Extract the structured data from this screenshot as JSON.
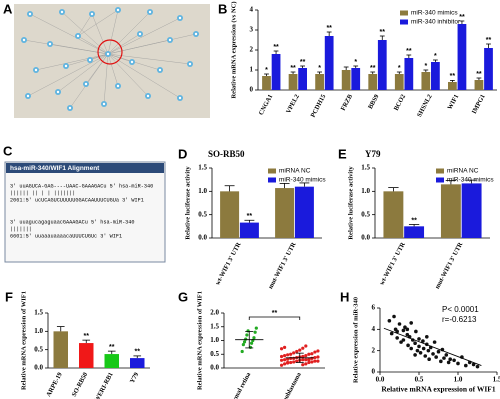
{
  "panel_a": {
    "label": "A"
  },
  "panel_c": {
    "label": "C",
    "title": "hsa-miR-340/WIF1 Alignment",
    "lines": [
      "3' uuAGUCA-GAG----UAAC-GAAAGACu 5' hsa-miR-340",
      "    |||||| ||     |   | |||||||",
      "2061:5' ucUCAGUCUUUUUGGACAAUUUCUGUa 3' WIF1",
      "3' uuagucagaguaacGAAAGACu 5' hsa-miR-340",
      "                |||||||",
      "6601:5' uuaaauaaaacaUUUCUGUc 3' WIF1"
    ]
  },
  "chart_data": [
    {
      "type": "bar",
      "panel": "B",
      "y_label": "Relative mRNA expression (vs NC)",
      "categories": [
        "CNGA1",
        "VPEL2",
        "PCDH15",
        "FRZB",
        "BBS9",
        "BCO2",
        "SHSNL2",
        "WIF1",
        "IMPG1"
      ],
      "series": [
        {
          "name": "miR-340 mimics",
          "color": "#8c7a3e",
          "values": [
            0.7,
            0.8,
            0.8,
            1.0,
            0.8,
            0.8,
            0.9,
            0.4,
            0.5
          ],
          "errors": [
            0.1,
            0.1,
            0.1,
            0.15,
            0.1,
            0.1,
            0.1,
            0.08,
            0.1
          ],
          "marks": [
            "*",
            "**",
            "*",
            null,
            "**",
            "*",
            "*",
            "**",
            "**"
          ]
        },
        {
          "name": "miR-340 inhibitor",
          "color": "#1a1adc",
          "values": [
            1.8,
            1.1,
            2.7,
            1.1,
            2.5,
            1.6,
            1.4,
            3.3,
            2.1
          ],
          "errors": [
            0.15,
            0.1,
            0.2,
            0.1,
            0.2,
            0.15,
            0.1,
            0.15,
            0.2
          ],
          "marks": [
            "**",
            "**",
            "**",
            "*",
            "**",
            "**",
            "*",
            "**",
            "**"
          ]
        }
      ],
      "ylim": [
        0,
        4
      ],
      "yticks": [
        0,
        1,
        2,
        3,
        4
      ],
      "legend": "top-right"
    },
    {
      "type": "bar",
      "panel": "D",
      "title": "SO-RB50",
      "y_label": "Relative luciferase activity",
      "categories": [
        "wt-WIF1 3' UTR",
        "mut-WIF1 3' UTR"
      ],
      "series": [
        {
          "name": "miRNA NC",
          "color": "#8c7a3e",
          "values": [
            1.0,
            1.07
          ],
          "errors": [
            0.12,
            0.1
          ]
        },
        {
          "name": "miR-340 mimics",
          "color": "#1a1adc",
          "values": [
            0.33,
            1.1
          ],
          "errors": [
            0.05,
            0.08
          ],
          "marks": [
            "**",
            null
          ]
        }
      ],
      "ylim": [
        0,
        1.5
      ],
      "yticks": [
        {
          "value": 0,
          "label": "0.0"
        },
        {
          "value": 0.5,
          "label": "0.5"
        },
        {
          "value": 1,
          "label": "1.0"
        },
        {
          "value": 1.5,
          "label": "1.5"
        }
      ],
      "legend": "top-right"
    },
    {
      "type": "bar",
      "panel": "E",
      "title": "Y79",
      "y_label": "Relative luciferase activity",
      "categories": [
        "wt-WIF1 3' UTR",
        "mut-WIF1 3' UTR"
      ],
      "series": [
        {
          "name": "miRNA NC",
          "color": "#8c7a3e",
          "values": [
            1.0,
            1.15
          ],
          "errors": [
            0.08,
            0.08
          ]
        },
        {
          "name": "miR-340 mimics",
          "color": "#1a1adc",
          "values": [
            0.25,
            1.17
          ],
          "errors": [
            0.04,
            0.07
          ],
          "marks": [
            "**",
            null
          ]
        }
      ],
      "ylim": [
        0,
        1.5
      ],
      "yticks": [
        {
          "value": 0,
          "label": "0.0"
        },
        {
          "value": 0.5,
          "label": "0.5"
        },
        {
          "value": 1,
          "label": "1.0"
        },
        {
          "value": 1.5,
          "label": "1.5"
        }
      ],
      "legend": "top-right"
    },
    {
      "type": "bar",
      "panel": "F",
      "y_label": "Relative mRNA expression of WIF1",
      "categories": [
        "ARPE-19",
        "SO-RB50",
        "WERI-RB1",
        "Y79"
      ],
      "values": [
        1.0,
        0.68,
        0.38,
        0.27
      ],
      "errors": [
        0.13,
        0.08,
        0.08,
        0.06
      ],
      "marks": [
        null,
        "**",
        "**",
        "**"
      ],
      "colors": [
        "#8c7a3e",
        "#f01818",
        "#18c818",
        "#1a1adc"
      ],
      "ylim": [
        0,
        1.5
      ],
      "yticks": [
        {
          "value": 0,
          "label": "0.0"
        },
        {
          "value": 0.5,
          "label": "0.5"
        },
        {
          "value": 1,
          "label": "1.0"
        },
        {
          "value": 1.5,
          "label": "1.5"
        }
      ]
    },
    {
      "type": "dot",
      "panel": "G",
      "y_label": "Relative mRNA expression of WIF1",
      "categories": [
        "Normal retina",
        "Retinoblastoma"
      ],
      "colors": [
        "#22aa22",
        "#e02020"
      ],
      "groups": [
        [
          0.6,
          0.75,
          0.85,
          0.9,
          0.95,
          1.0,
          1.05,
          1.1,
          1.2,
          1.3,
          1.35,
          1.45
        ],
        [
          0.1,
          0.12,
          0.15,
          0.15,
          0.18,
          0.2,
          0.2,
          0.22,
          0.22,
          0.25,
          0.25,
          0.25,
          0.28,
          0.28,
          0.3,
          0.3,
          0.3,
          0.32,
          0.32,
          0.35,
          0.35,
          0.35,
          0.38,
          0.38,
          0.4,
          0.4,
          0.42,
          0.42,
          0.45,
          0.45,
          0.48,
          0.5,
          0.5,
          0.52,
          0.55,
          0.58,
          0.6,
          0.62,
          0.65,
          0.7,
          0.72,
          0.75,
          0.8,
          0.2,
          0.3
        ]
      ],
      "means": [
        1.03,
        0.37
      ],
      "sds": [
        0.3,
        0.17
      ],
      "significance": "**",
      "ylim": [
        0,
        2
      ],
      "yticks": [
        {
          "value": 0,
          "label": "0.0"
        },
        {
          "value": 0.5,
          "label": "0.5"
        },
        {
          "value": 1,
          "label": "1.0"
        },
        {
          "value": 1.5,
          "label": "1.5"
        },
        {
          "value": 2,
          "label": "2.0"
        }
      ]
    },
    {
      "type": "scatter",
      "panel": "H",
      "x_label": "Relative mRNA expression of WIF1",
      "y_label": "Relative expression of miR-340",
      "x": [
        0.12,
        0.15,
        0.18,
        0.2,
        0.22,
        0.25,
        0.27,
        0.3,
        0.3,
        0.32,
        0.35,
        0.36,
        0.38,
        0.4,
        0.4,
        0.42,
        0.45,
        0.46,
        0.48,
        0.5,
        0.5,
        0.52,
        0.55,
        0.56,
        0.58,
        0.6,
        0.62,
        0.63,
        0.65,
        0.68,
        0.7,
        0.72,
        0.75,
        0.78,
        0.8,
        0.82,
        0.85,
        0.88,
        0.9,
        0.95,
        1.0,
        1.05,
        1.1,
        1.15,
        1.2,
        1.25,
        0.22,
        0.35,
        0.45,
        0.6
      ],
      "y": [
        4.8,
        3.6,
        5.2,
        4.0,
        3.2,
        4.5,
        2.8,
        3.9,
        3.0,
        4.2,
        3.5,
        2.5,
        3.3,
        4.6,
        2.2,
        3.0,
        2.7,
        3.8,
        2.0,
        3.1,
        2.4,
        1.8,
        2.9,
        2.2,
        1.5,
        2.6,
        2.0,
        1.2,
        2.3,
        1.7,
        2.8,
        1.4,
        1.9,
        1.0,
        2.1,
        1.3,
        1.6,
        0.9,
        1.2,
        1.1,
        0.8,
        1.4,
        0.6,
        0.9,
        0.7,
        0.5,
        3.8,
        4.0,
        1.6,
        3.3
      ],
      "trend": {
        "x": [
          0.05,
          1.3
        ],
        "y": [
          4.1,
          0.6
        ]
      },
      "annotations": [
        "P< 0.0001",
        "r=-0.6213"
      ],
      "xlim": [
        0,
        1.5
      ],
      "xticks": [
        {
          "value": 0,
          "label": "0.0"
        },
        {
          "value": 0.5,
          "label": "0.5"
        },
        {
          "value": 1,
          "label": "1.0"
        },
        {
          "value": 1.5,
          "label": "1.5"
        }
      ],
      "ylim": [
        0,
        6
      ],
      "yticks": [
        0,
        2,
        4,
        6
      ]
    }
  ]
}
